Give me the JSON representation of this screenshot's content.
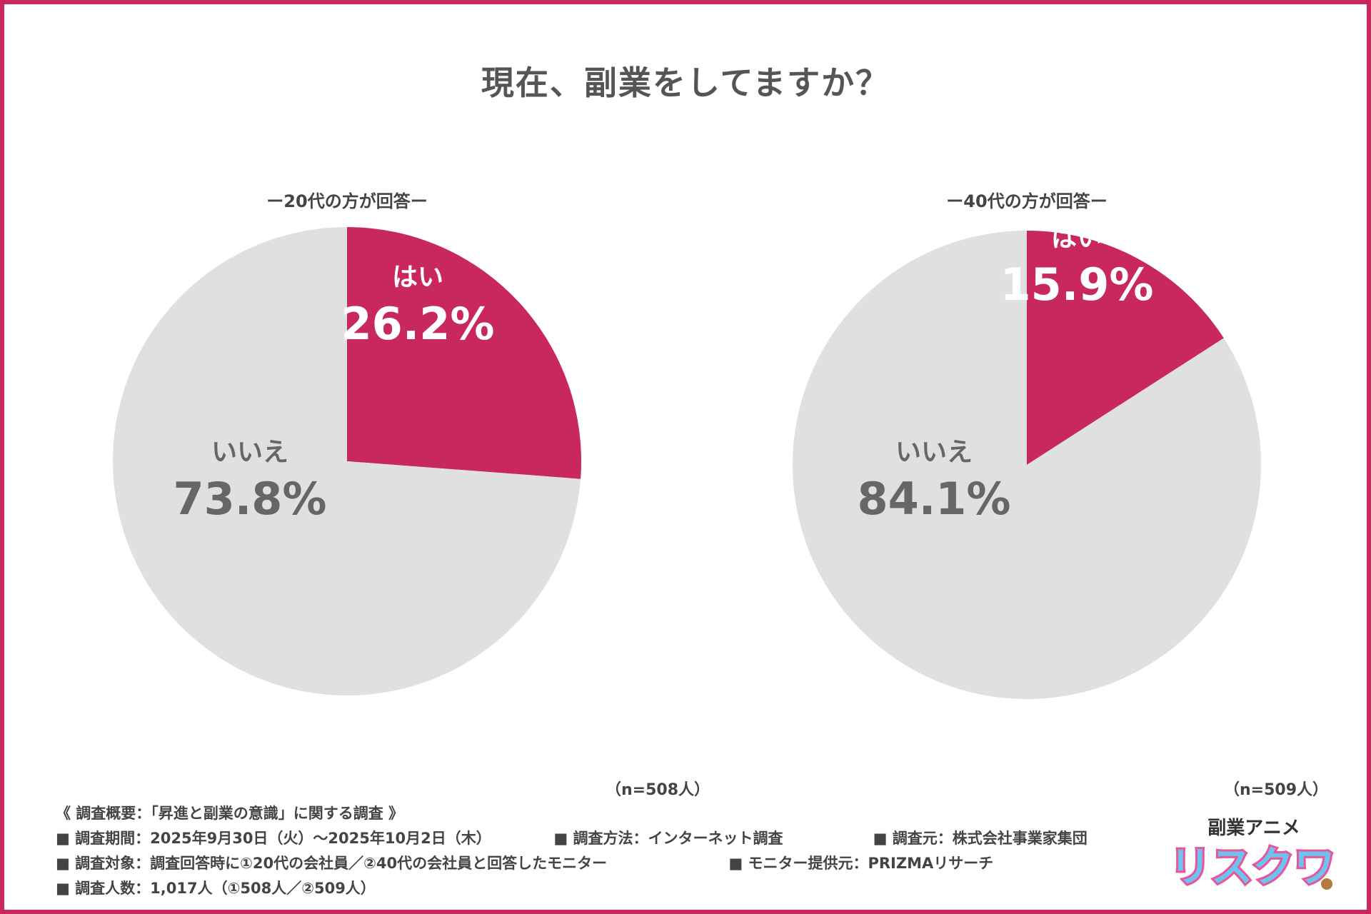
{
  "title": "現在、副業をしてますか？",
  "colors": {
    "border": "#c8285e",
    "yes": "#c8285e",
    "no": "#e0e0e0",
    "no_text": "#666666",
    "yes_text": "#ffffff"
  },
  "chart_data": [
    {
      "type": "pie",
      "title": "ー20代の方が回答ー",
      "labels": [
        "はい",
        "いいえ"
      ],
      "values": [
        26.2,
        73.8
      ],
      "value_labels": [
        "26.2%",
        "73.8%"
      ],
      "n": "（n=508人）"
    },
    {
      "type": "pie",
      "title": "ー40代の方が回答ー",
      "labels": [
        "はい",
        "いいえ"
      ],
      "values": [
        15.9,
        84.1
      ],
      "value_labels": [
        "15.9%",
        "84.1%"
      ],
      "n": "（n=509人）"
    }
  ],
  "survey": {
    "heading": "《 調査概要：「昇進と副業の意識」に関する調査 》",
    "period": "■ 調査期間：2025年9月30日（火）〜2025年10月2日（木）",
    "method": "■ 調査方法：インターネット調査",
    "source": "■ 調査元：株式会社事業家集団",
    "target": "■ 調査対象：調査回答時に①20代の会社員／②40代の会社員と回答したモニター",
    "provider": "■ モニター提供元：PRIZMAリサーチ",
    "count": "■ 調査人数：1,017人（①508人／②509人）"
  },
  "logo": {
    "top_text": "副業アニメ",
    "main_text": "リスクワ"
  }
}
